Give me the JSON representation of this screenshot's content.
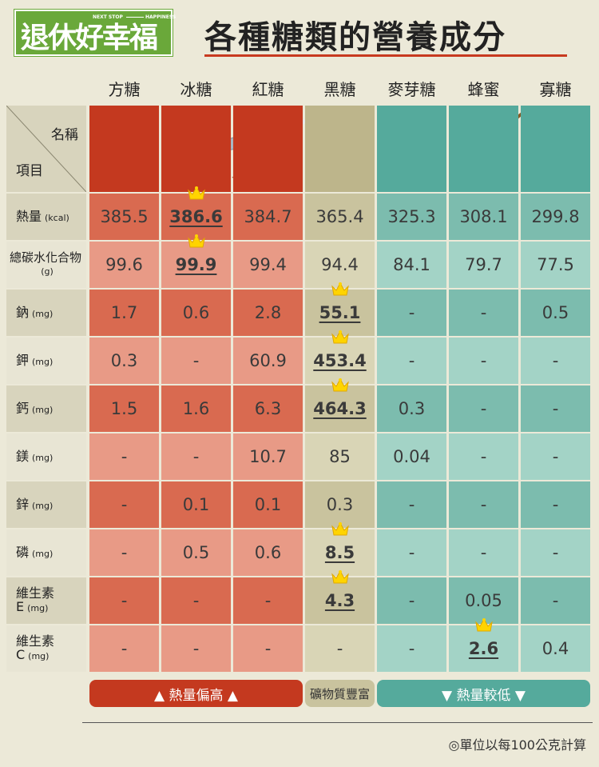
{
  "logo": {
    "name": "退休好幸福",
    "tag_from": "NEXT STOP",
    "tag_to": "HAPPINESS"
  },
  "title": "各種糖類的營養成分",
  "table": {
    "corner": {
      "column": "名稱",
      "row": "項目"
    },
    "columns": [
      "方糖",
      "冰糖",
      "紅糖",
      "黑糖",
      "麥芽糖",
      "蜂蜜",
      "寡糖"
    ],
    "rows": [
      {
        "name": "熱量",
        "unit": "(kcal)",
        "cells": [
          "385.5",
          "386.6",
          "384.7",
          "365.4",
          "325.3",
          "308.1",
          "299.8"
        ]
      },
      {
        "name": "總碳水化合物",
        "unit": "(g)",
        "cells": [
          "99.6",
          "99.9",
          "99.4",
          "94.4",
          "84.1",
          "79.7",
          "77.5"
        ]
      },
      {
        "name": "鈉",
        "unit": "(mg)",
        "cells": [
          "1.7",
          "0.6",
          "2.8",
          "55.1",
          "-",
          "-",
          "0.5"
        ]
      },
      {
        "name": "鉀",
        "unit": "(mg)",
        "cells": [
          "0.3",
          "-",
          "60.9",
          "453.4",
          "-",
          "-",
          "-"
        ]
      },
      {
        "name": "鈣",
        "unit": "(mg)",
        "cells": [
          "1.5",
          "1.6",
          "6.3",
          "464.3",
          "0.3",
          "-",
          "-"
        ]
      },
      {
        "name": "鎂",
        "unit": "(mg)",
        "cells": [
          "-",
          "-",
          "10.7",
          "85",
          "0.04",
          "-",
          "-"
        ]
      },
      {
        "name": "鋅",
        "unit": "(mg)",
        "cells": [
          "-",
          "0.1",
          "0.1",
          "0.3",
          "-",
          "-",
          "-"
        ]
      },
      {
        "name": "磷",
        "unit": "(mg)",
        "cells": [
          "-",
          "0.5",
          "0.6",
          "8.5",
          "-",
          "-",
          "-"
        ]
      },
      {
        "name": "維生素E",
        "unit": "(mg)",
        "cells": [
          "-",
          "-",
          "-",
          "4.3",
          "-",
          "0.05",
          "-"
        ]
      },
      {
        "name": "維生素C",
        "unit": "(mg)",
        "cells": [
          "-",
          "-",
          "-",
          "-",
          "-",
          "2.6",
          "0.4"
        ]
      }
    ]
  },
  "legend": [
    "▲ 熱量偏高 ▲",
    "礦物質豐富",
    "▼ 熱量較低 ▼"
  ],
  "footnote": "◎單位以每100公克計算"
}
